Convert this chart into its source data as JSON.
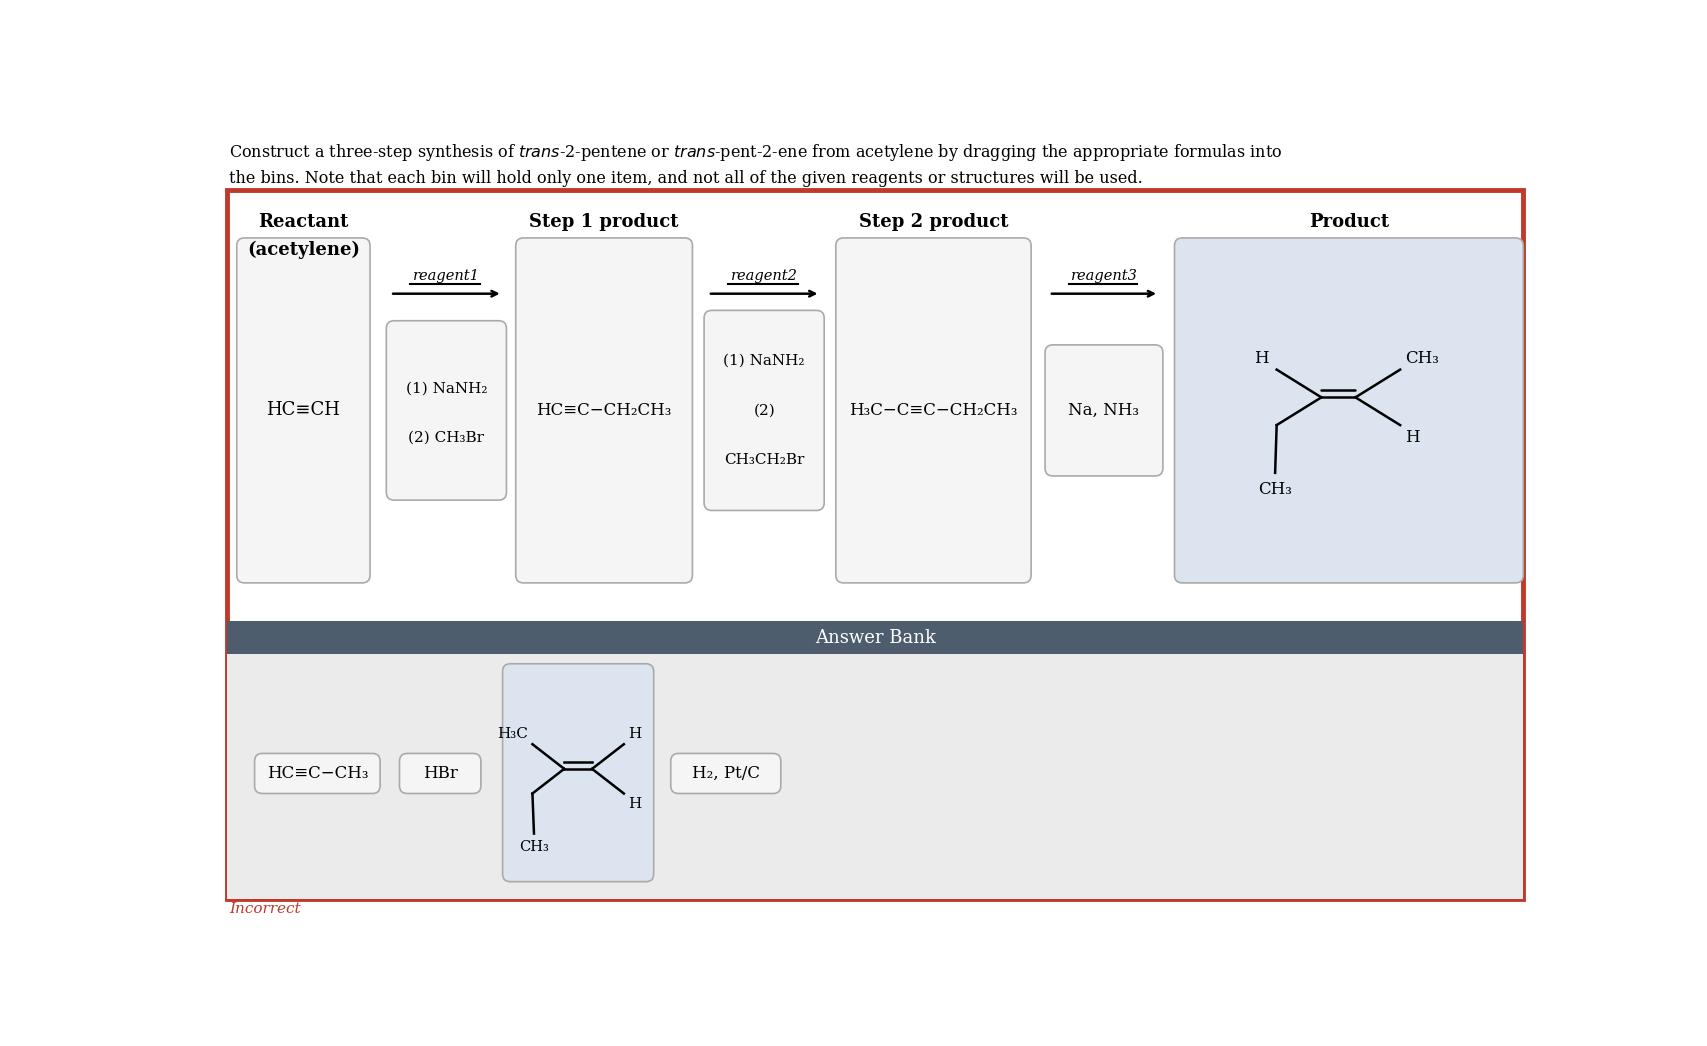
{
  "outer_border_color": "#c0392b",
  "answer_bank_header_bg": "#4e5d6e",
  "answer_bank_header_text": "Answer Bank",
  "answer_bank_bg": "#ebebeb",
  "box_bg_light": "#f0f0f0",
  "box_bg_product": "#dce4ef",
  "box_bg_cis": "#dce4ef",
  "box_border": "#aaaaaa",
  "incorrect_text": "Incorrect",
  "incorrect_color": "#c0392b",
  "title_line1": "Construct a three-step synthesis of $\\mathit{trans}$-2-pentene or $\\mathit{trans}$-pent-2-ene from acetylene by dragging the appropriate formulas into",
  "title_line2": "the bins. Note that each bin will hold only one item, and not all of the given reagents or structures will be used.",
  "col_labels": [
    "Reactant",
    "(acetylene)",
    "Step 1 product",
    "Step 2 product",
    "Product"
  ],
  "reagent_labels": [
    "reagent1",
    "reagent2",
    "reagent3"
  ],
  "box_contents": {
    "reactant": "HC≡CH",
    "reagent1_line1": "(1) NaNH₂",
    "reagent1_line2": "(2) CH₃Br",
    "step1": "HC≡C−CH₂CH₃",
    "reagent2_line1": "(1) NaNH₂",
    "reagent2_line2": "(2)",
    "reagent2_line3": "CH₃CH₂Br",
    "step2": "H₃C−C≡C−CH₂CH₃",
    "reagent3": "Na, NH₃",
    "hcech3": "HC≡C−CH₃",
    "hbr": "HBr",
    "h2ptc": "H₂, Pt/C"
  }
}
